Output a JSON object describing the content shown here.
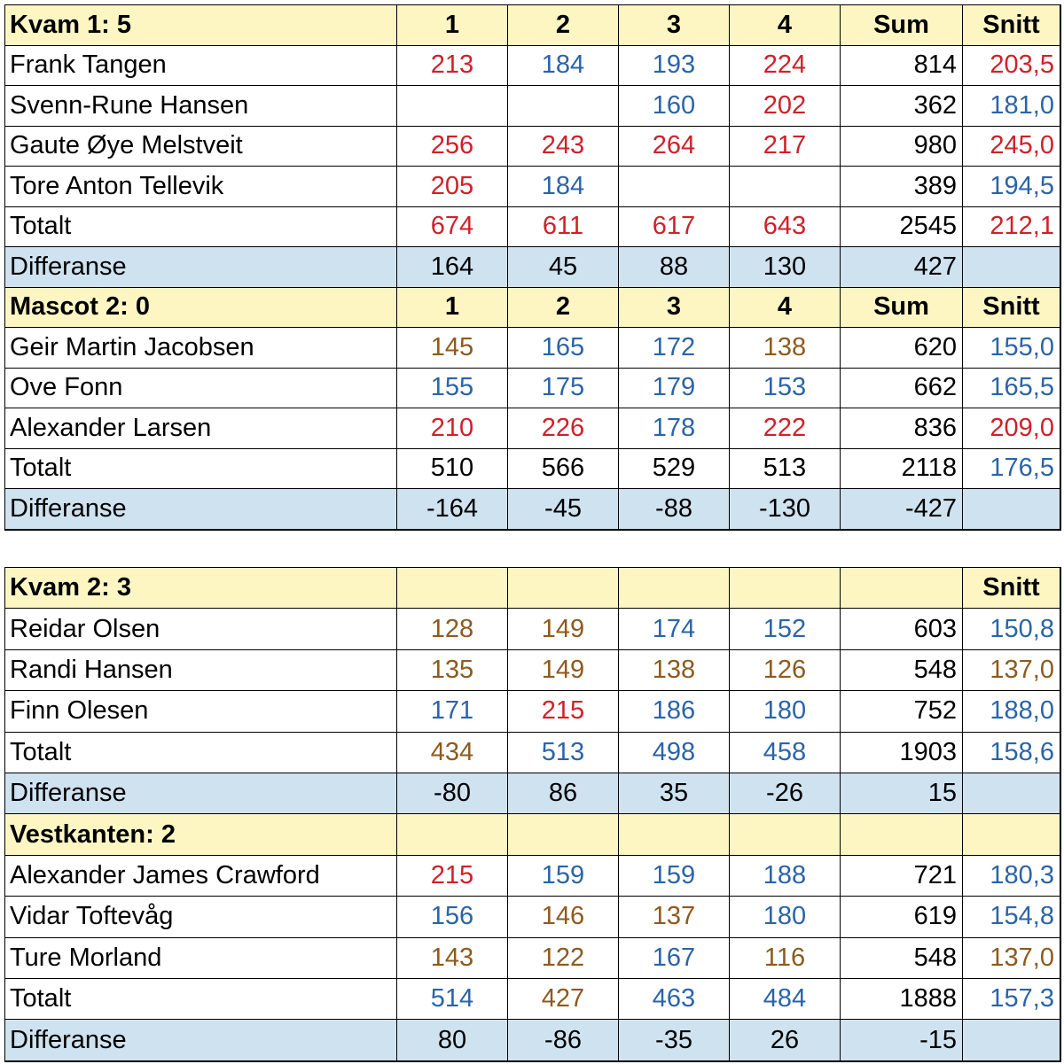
{
  "tables": [
    {
      "sections": [
        {
          "rows": [
            {
              "cells": [
                "Kvam 1: 5",
                "1",
                "2",
                "3",
                "4",
                "Sum",
                "Snitt"
              ],
              "colors": [
                "black",
                "black",
                "black",
                "black",
                "black",
                "black"
              ]
            },
            {
              "cells": [
                "Frank Tangen",
                "213",
                "184",
                "193",
                "224",
                "814",
                "203,5"
              ],
              "colors": [
                "red",
                "blue",
                "blue",
                "red",
                "black",
                "red"
              ]
            },
            {
              "cells": [
                "Svenn-Rune Hansen",
                null,
                null,
                "160",
                "202",
                "362",
                "181,0"
              ],
              "colors": [
                null,
                null,
                "blue",
                "red",
                "black",
                "blue"
              ]
            },
            {
              "cells": [
                "Gaute Øye Melstveit",
                "256",
                "243",
                "264",
                "217",
                "980",
                "245,0"
              ],
              "colors": [
                "red",
                "red",
                "red",
                "red",
                "black",
                "red"
              ]
            },
            {
              "cells": [
                "Tore Anton Tellevik",
                "205",
                "184",
                null,
                null,
                "389",
                "194,5"
              ],
              "colors": [
                "red",
                "blue",
                null,
                null,
                "black",
                "blue"
              ]
            },
            {
              "cells": [
                "Totalt",
                "674",
                "611",
                "617",
                "643",
                "2545",
                "212,1"
              ],
              "colors": [
                "red",
                "red",
                "red",
                "red",
                "black",
                "red"
              ]
            },
            {
              "cells": [
                "Differanse",
                "164",
                "45",
                "88",
                "130",
                "427",
                null
              ],
              "colors": [
                "black",
                "black",
                "black",
                "black",
                "black",
                null
              ]
            }
          ]
        },
        {
          "rows": [
            {
              "cells": [
                "Mascot 2: 0",
                "1",
                "2",
                "3",
                "4",
                "Sum",
                "Snitt"
              ],
              "colors": [
                "black",
                "black",
                "black",
                "black",
                "black",
                "black"
              ]
            },
            {
              "cells": [
                "Geir Martin Jacobsen",
                "145",
                "165",
                "172",
                "138",
                "620",
                "155,0"
              ],
              "colors": [
                "brown",
                "blue",
                "blue",
                "brown",
                "black",
                "blue"
              ]
            },
            {
              "cells": [
                "Ove Fonn",
                "155",
                "175",
                "179",
                "153",
                "662",
                "165,5"
              ],
              "colors": [
                "blue",
                "blue",
                "blue",
                "blue",
                "black",
                "blue"
              ]
            },
            {
              "cells": [
                "Alexander Larsen",
                "210",
                "226",
                "178",
                "222",
                "836",
                "209,0"
              ],
              "colors": [
                "red",
                "red",
                "blue",
                "red",
                "black",
                "red"
              ]
            },
            {
              "cells": [
                "Totalt",
                "510",
                "566",
                "529",
                "513",
                "2118",
                "176,5"
              ],
              "colors": [
                "black",
                "black",
                "black",
                "black",
                "black",
                "blue"
              ]
            },
            {
              "cells": [
                "Differanse",
                "-164",
                "-45",
                "-88",
                "-130",
                "-427",
                null
              ],
              "colors": [
                "black",
                "black",
                "black",
                "black",
                "black",
                null
              ]
            }
          ]
        }
      ]
    },
    {
      "sections": [
        {
          "rows": [
            {
              "cells": [
                "Kvam 2: 3",
                null,
                null,
                null,
                null,
                null,
                "Snitt"
              ],
              "colors": [
                null,
                null,
                null,
                null,
                null,
                "black"
              ]
            },
            {
              "cells": [
                "Reidar Olsen",
                "128",
                "149",
                "174",
                "152",
                "603",
                "150,8"
              ],
              "colors": [
                "brown",
                "brown",
                "blue",
                "blue",
                "black",
                "blue"
              ]
            },
            {
              "cells": [
                "Randi Hansen",
                "135",
                "149",
                "138",
                "126",
                "548",
                "137,0"
              ],
              "colors": [
                "brown",
                "brown",
                "brown",
                "brown",
                "black",
                "brown"
              ]
            },
            {
              "cells": [
                "Finn Olesen",
                "171",
                "215",
                "186",
                "180",
                "752",
                "188,0"
              ],
              "colors": [
                "blue",
                "red",
                "blue",
                "blue",
                "black",
                "blue"
              ]
            },
            {
              "cells": [
                "Totalt",
                "434",
                "513",
                "498",
                "458",
                "1903",
                "158,6"
              ],
              "colors": [
                "brown",
                "blue",
                "blue",
                "blue",
                "black",
                "blue"
              ]
            },
            {
              "cells": [
                "Differanse",
                "-80",
                "86",
                "35",
                "-26",
                "15",
                null
              ],
              "colors": [
                "black",
                "black",
                "black",
                "black",
                "black",
                null
              ]
            }
          ]
        },
        {
          "rows": [
            {
              "cells": [
                "Vestkanten: 2",
                null,
                null,
                null,
                null,
                null,
                null
              ],
              "colors": [
                null,
                null,
                null,
                null,
                null,
                null
              ]
            },
            {
              "cells": [
                "Alexander James Crawford",
                "215",
                "159",
                "159",
                "188",
                "721",
                "180,3"
              ],
              "colors": [
                "red",
                "blue",
                "blue",
                "blue",
                "black",
                "blue"
              ]
            },
            {
              "cells": [
                "Vidar Toftevåg",
                "156",
                "146",
                "137",
                "180",
                "619",
                "154,8"
              ],
              "colors": [
                "blue",
                "brown",
                "brown",
                "blue",
                "black",
                "blue"
              ]
            },
            {
              "cells": [
                "Ture Morland",
                "143",
                "122",
                "167",
                "116",
                "548",
                "137,0"
              ],
              "colors": [
                "brown",
                "brown",
                "blue",
                "brown",
                "black",
                "brown"
              ]
            },
            {
              "cells": [
                "Totalt",
                "514",
                "427",
                "463",
                "484",
                "1888",
                "157,3"
              ],
              "colors": [
                "blue",
                "brown",
                "blue",
                "blue",
                "black",
                "blue"
              ]
            },
            {
              "cells": [
                "Differanse",
                "80",
                "-86",
                "-35",
                "26",
                "-15",
                null
              ],
              "colors": [
                "black",
                "black",
                "black",
                "black",
                "black",
                null
              ]
            }
          ]
        }
      ]
    }
  ]
}
